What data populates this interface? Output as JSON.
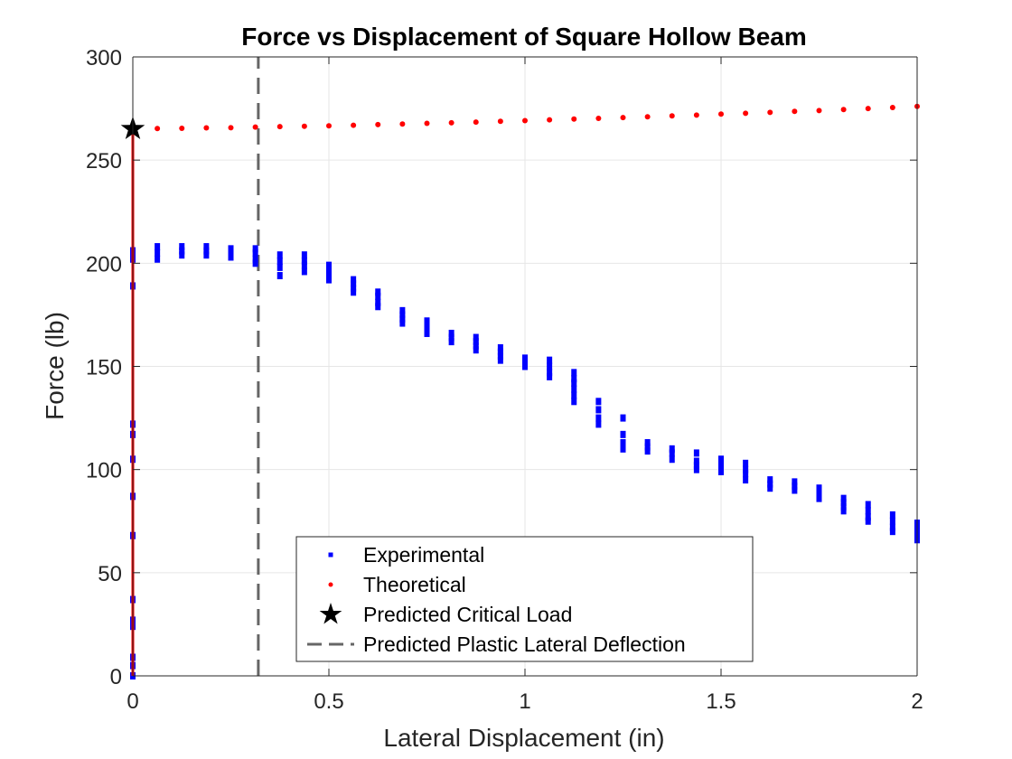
{
  "chart_data": {
    "type": "scatter",
    "title": "Force vs Displacement of Square Hollow Beam",
    "xlabel": "Lateral Displacement (in)",
    "ylabel": "Force (lb)",
    "xlim": [
      0,
      2
    ],
    "ylim": [
      0,
      300
    ],
    "xticks": [
      0,
      0.5,
      1,
      1.5,
      2
    ],
    "xtick_labels": [
      "0",
      "0.5",
      "1",
      "1.5",
      "2"
    ],
    "yticks": [
      0,
      50,
      100,
      150,
      200,
      250,
      300
    ],
    "ytick_labels": [
      "0",
      "50",
      "100",
      "150",
      "200",
      "250",
      "300"
    ],
    "grid": true,
    "legend_position": "bottom-center",
    "series": [
      {
        "name": "Experimental",
        "marker": "point",
        "color": "#0000ff",
        "x": [
          0,
          0,
          0,
          0,
          0,
          0,
          0,
          0,
          0,
          0,
          0,
          0,
          0,
          0,
          0,
          0,
          0,
          0,
          0.0625,
          0.0625,
          0.0625,
          0.125,
          0.125,
          0.125,
          0.1875,
          0.1875,
          0.1875,
          0.25,
          0.25,
          0.25,
          0.3125,
          0.3125,
          0.3125,
          0.3125,
          0.375,
          0.375,
          0.375,
          0.375,
          0.4375,
          0.4375,
          0.4375,
          0.4375,
          0.5,
          0.5,
          0.5,
          0.5,
          0.5625,
          0.5625,
          0.5625,
          0.5625,
          0.625,
          0.625,
          0.625,
          0.625,
          0.6875,
          0.6875,
          0.6875,
          0.6875,
          0.75,
          0.75,
          0.75,
          0.75,
          0.8125,
          0.8125,
          0.8125,
          0.875,
          0.875,
          0.875,
          0.875,
          0.9375,
          0.9375,
          0.9375,
          0.9375,
          1.0,
          1.0,
          1.0,
          1.0625,
          1.0625,
          1.0625,
          1.0625,
          1.125,
          1.125,
          1.125,
          1.125,
          1.125,
          1.125,
          1.1875,
          1.1875,
          1.1875,
          1.1875,
          1.25,
          1.25,
          1.25,
          1.25,
          1.3125,
          1.3125,
          1.3125,
          1.375,
          1.375,
          1.375,
          1.4375,
          1.4375,
          1.4375,
          1.4375,
          1.5,
          1.5,
          1.5,
          1.5,
          1.5625,
          1.5625,
          1.5625,
          1.5625,
          1.625,
          1.625,
          1.625,
          1.6875,
          1.6875,
          1.6875,
          1.75,
          1.75,
          1.75,
          1.8125,
          1.8125,
          1.8125,
          1.8125,
          1.875,
          1.875,
          1.875,
          1.875,
          1.9375,
          1.9375,
          1.9375,
          1.9375,
          2.0,
          2.0,
          2.0,
          2.0
        ],
        "y": [
          0,
          5,
          9,
          24,
          27,
          37,
          68,
          87,
          105,
          117,
          122,
          189,
          202,
          203,
          204,
          205,
          206,
          206,
          202,
          205,
          208,
          204,
          206,
          208,
          204,
          206,
          208,
          203,
          205,
          207,
          200,
          202,
          205,
          207,
          194,
          198,
          201,
          204,
          196,
          199,
          201,
          204,
          192,
          195,
          197,
          199,
          186,
          188,
          190,
          192,
          179,
          181,
          184,
          186,
          171,
          173,
          175,
          177,
          166,
          168,
          170,
          172,
          162,
          164,
          166,
          158,
          160,
          162,
          164,
          153,
          155,
          157,
          159,
          150,
          152,
          154,
          145,
          147,
          150,
          153,
          133,
          136,
          139,
          142,
          144,
          147,
          122,
          125,
          129,
          133,
          110,
          113,
          117,
          125,
          109,
          111,
          113,
          105,
          108,
          110,
          100,
          102,
          104,
          108,
          99,
          101,
          103,
          105,
          95,
          98,
          100,
          103,
          91,
          93,
          95,
          90,
          92,
          94,
          86,
          88,
          91,
          80,
          82,
          84,
          86,
          75,
          77,
          80,
          83,
          70,
          72,
          75,
          78,
          66,
          68,
          71,
          74
        ]
      },
      {
        "name": "Theoretical",
        "marker": "point",
        "color": "#ff0000",
        "x": [
          0,
          0.0625,
          0.125,
          0.1875,
          0.25,
          0.3125,
          0.375,
          0.4375,
          0.5,
          0.5625,
          0.625,
          0.6875,
          0.75,
          0.8125,
          0.875,
          0.9375,
          1.0,
          1.0625,
          1.125,
          1.1875,
          1.25,
          1.3125,
          1.375,
          1.4375,
          1.5,
          1.5625,
          1.625,
          1.6875,
          1.75,
          1.8125,
          1.875,
          1.9375,
          2.0
        ],
        "y": [
          265.1,
          265.3,
          265.4,
          265.6,
          265.7,
          266.0,
          266.2,
          266.4,
          266.6,
          266.9,
          267.2,
          267.5,
          267.8,
          268.1,
          268.4,
          268.8,
          269.1,
          269.5,
          269.9,
          270.2,
          270.6,
          271.0,
          271.4,
          271.8,
          272.3,
          272.7,
          273.1,
          273.6,
          274.0,
          274.5,
          275.0,
          275.5,
          276.0
        ]
      },
      {
        "name": "Predicted Critical Load",
        "marker": "pentagram",
        "color": "#000000",
        "x": [
          0
        ],
        "y": [
          265.1
        ]
      },
      {
        "name": "Predicted Plastic Lateral Deflection",
        "marker": "dashed-line",
        "color": "#666666",
        "x": [
          0.32,
          0.32
        ],
        "y": [
          0,
          300
        ]
      }
    ],
    "red_vertical_line": {
      "color": "#ff0000",
      "x": [
        0,
        0
      ],
      "y": [
        0,
        265.1
      ]
    }
  }
}
